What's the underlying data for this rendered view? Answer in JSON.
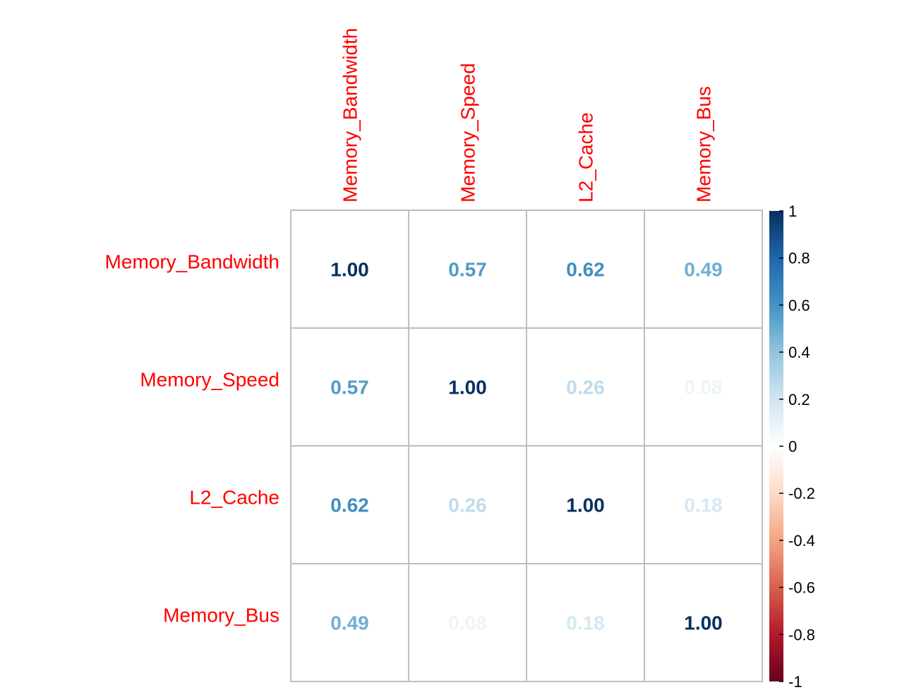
{
  "chart_data": {
    "type": "heatmap",
    "variables": [
      "Memory_Bandwidth",
      "Memory_Speed",
      "L2_Cache",
      "Memory_Bus"
    ],
    "matrix": [
      [
        1.0,
        0.57,
        0.62,
        0.49
      ],
      [
        0.57,
        1.0,
        0.26,
        0.08
      ],
      [
        0.62,
        0.26,
        1.0,
        0.18
      ],
      [
        0.49,
        0.08,
        0.18,
        1.0
      ]
    ],
    "value_labels": [
      [
        "1.00",
        "0.57",
        "0.62",
        "0.49"
      ],
      [
        "0.57",
        "1.00",
        "0.26",
        "0.08"
      ],
      [
        "0.62",
        "0.26",
        "1.00",
        "0.18"
      ],
      [
        "0.49",
        "0.08",
        "0.18",
        "1.00"
      ]
    ],
    "colorbar": {
      "range": [
        -1,
        1
      ],
      "ticks": [
        "1",
        "0.8",
        "0.6",
        "0.4",
        "0.2",
        "0",
        "-0.2",
        "-0.4",
        "-0.6",
        "-0.8",
        "-1"
      ],
      "colors": [
        "#67001F",
        "#B2182B",
        "#D6604D",
        "#F4A582",
        "#FDDBC7",
        "#FFFFFF",
        "#D1E5F0",
        "#92C5DE",
        "#4393C3",
        "#2166AC",
        "#053061"
      ]
    },
    "label_color": "#FF0000",
    "grid_color": "#BEBEBE"
  }
}
